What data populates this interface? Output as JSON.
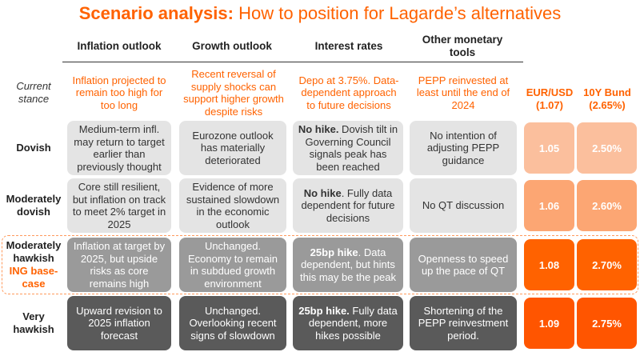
{
  "title": {
    "bold": "Scenario analysis:",
    "rest": " How to position for Lagarde’s alternatives"
  },
  "columns": [
    {
      "label": "Inflation outlook"
    },
    {
      "label": "Growth outlook"
    },
    {
      "label": "Interest rates"
    },
    {
      "label": "Other monetary tools"
    }
  ],
  "current_stance": {
    "label": "Current stance",
    "cells": [
      "Inflation projected to remain too high for too long",
      "Recent reversal of supply shocks can support higher growth despite risks",
      "Depo at 3.75%. Data-dependent approach to future decisions",
      "PEPP reinvested at least until the end of 2024"
    ]
  },
  "markets": [
    {
      "label": "EUR/USD (1.07)"
    },
    {
      "label": "10Y Bund (2.65%)"
    }
  ],
  "rows": [
    {
      "label": "Dovish",
      "sublabel": "",
      "cells": [
        {
          "bold": "",
          "text": "Medium-term infl. may return to target earlier than previously thought"
        },
        {
          "bold": "",
          "text": "Eurozone outlook has materially deteriorated"
        },
        {
          "bold": "No hike.",
          "text": " Dovish tilt in Governing Council signals peak has been reached"
        },
        {
          "bold": "",
          "text": "No intention of adjusting PEPP guidance"
        }
      ],
      "eurusd": "1.05",
      "bund": "2.50%"
    },
    {
      "label": "Moderately dovish",
      "sublabel": "",
      "cells": [
        {
          "bold": "",
          "text": "Core still resilient, but inflation on track to meet 2% target in 2025"
        },
        {
          "bold": "",
          "text": "Evidence of more sustained slowdown in the economic outlook"
        },
        {
          "bold": "No hike",
          "text": ". Fully data dependent for future decisions"
        },
        {
          "bold": "",
          "text": "No QT discussion"
        }
      ],
      "eurusd": "1.06",
      "bund": "2.60%"
    },
    {
      "label": "Moderately hawkish",
      "sublabel": "ING base-case",
      "cells": [
        {
          "bold": "",
          "text": "Inflation at target by 2025, but upside risks as core remains high"
        },
        {
          "bold": "",
          "text": "Unchanged. Economy to remain in subdued growth environment"
        },
        {
          "bold": "25bp hike",
          "text": ". Data dependent, but hints this may be the peak"
        },
        {
          "bold": "",
          "text": "Openness to speed up the pace of QT"
        }
      ],
      "eurusd": "1.08",
      "bund": "2.70%"
    },
    {
      "label": "Very hawkish",
      "sublabel": "",
      "cells": [
        {
          "bold": "",
          "text": "Upward revision to 2025 inflation forecast"
        },
        {
          "bold": "",
          "text": "Unchanged. Overlooking recent signs of slowdown"
        },
        {
          "bold": "25bp hike.",
          "text": " Fully data dependent, more hikes possible"
        },
        {
          "bold": "",
          "text": "Shortening of the PEPP reinvestment period."
        }
      ],
      "eurusd": "1.09",
      "bund": "2.75%"
    }
  ],
  "colors": {
    "accent": "#ff6200",
    "row_fills": [
      "#e4e4e4",
      "#e4e4e4",
      "#9a9a9a",
      "#5a5a5a"
    ],
    "row_text": [
      "#333333",
      "#333333",
      "#ffffff",
      "#ffffff"
    ],
    "value_fills": [
      "#fbbf9d",
      "#fca673",
      "#ff6200",
      "#ff5500"
    ],
    "value_text": [
      "#ffffff",
      "#ffffff",
      "#ffffff",
      "#ffffff"
    ]
  }
}
